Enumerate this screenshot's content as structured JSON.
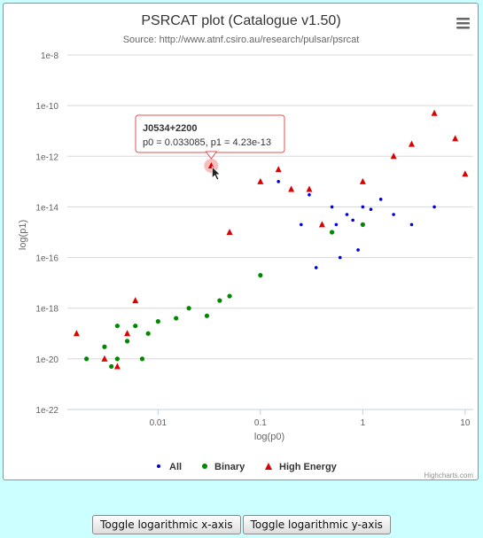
{
  "chart": {
    "title": "PSRCAT plot (Catalogue v1.50)",
    "subtitle": "Source: http://www.atnf.csiro.au/research/pulsar/psrcat",
    "credits": "Highcharts.com",
    "menu_icon": "hamburger-menu-icon"
  },
  "tooltip": {
    "name": "J0534+2200",
    "text": "p0 = 0.033085, p1 = 4.23e-13",
    "color": "#e05050"
  },
  "controls": {
    "toggle_x": "Toggle logarithmic x-axis",
    "toggle_y": "Toggle logarithmic y-axis"
  },
  "chart_data": {
    "type": "scatter",
    "title": "PSRCAT plot (Catalogue v1.50)",
    "subtitle": "Source: http://www.atnf.csiro.au/research/pulsar/psrcat",
    "xlabel": "log(p0)",
    "ylabel": "log(p1)",
    "x_scale": "log",
    "y_scale": "log",
    "xlim": [
      0.0013,
      12
    ],
    "ylim": [
      1e-22,
      1e-08
    ],
    "x_ticks": [
      "0.01",
      "0.1",
      "1",
      "10"
    ],
    "y_ticks": [
      "1e-22",
      "1e-20",
      "1e-18",
      "1e-16",
      "1e-14",
      "1e-12",
      "1e-10",
      "1e-8"
    ],
    "grid": "horizontal",
    "legend_position": "bottom-center",
    "series": [
      {
        "name": "All",
        "color": "#0000dd",
        "marker": "circle",
        "points": [
          [
            0.3,
            3e-14
          ],
          [
            0.5,
            1e-14
          ],
          [
            0.7,
            5e-15
          ],
          [
            1.0,
            1e-14
          ],
          [
            0.4,
            2e-15
          ],
          [
            0.6,
            1e-16
          ],
          [
            0.35,
            4e-17
          ],
          [
            0.2,
            5e-14
          ],
          [
            0.8,
            3e-15
          ],
          [
            1.5,
            2e-14
          ],
          [
            2.0,
            5e-15
          ],
          [
            0.9,
            2e-16
          ],
          [
            0.55,
            2e-15
          ],
          [
            1.2,
            8e-15
          ],
          [
            3.0,
            2e-15
          ],
          [
            5.0,
            1e-14
          ],
          [
            0.15,
            1e-13
          ],
          [
            0.25,
            2e-15
          ]
        ]
      },
      {
        "name": "Binary",
        "color": "#008800",
        "marker": "circle",
        "points": [
          [
            0.003,
            3e-20
          ],
          [
            0.004,
            1e-20
          ],
          [
            0.005,
            5e-20
          ],
          [
            0.006,
            2e-19
          ],
          [
            0.008,
            1e-19
          ],
          [
            0.01,
            3e-19
          ],
          [
            0.02,
            1e-18
          ],
          [
            0.03,
            5e-19
          ],
          [
            0.004,
            2e-19
          ],
          [
            0.002,
            1e-20
          ],
          [
            0.0035,
            5e-21
          ],
          [
            0.007,
            1e-20
          ],
          [
            0.05,
            3e-18
          ],
          [
            0.1,
            2e-17
          ],
          [
            0.5,
            1e-15
          ],
          [
            1.0,
            2e-15
          ],
          [
            0.04,
            2e-18
          ],
          [
            0.015,
            4e-19
          ]
        ]
      },
      {
        "name": "High Energy",
        "color": "#dd0000",
        "marker": "triangle",
        "points": [
          [
            0.033085,
            4.23e-13
          ],
          [
            0.0016,
            1e-19
          ],
          [
            0.003,
            1e-20
          ],
          [
            0.004,
            5e-21
          ],
          [
            0.005,
            1e-19
          ],
          [
            0.006,
            2e-18
          ],
          [
            0.1,
            1e-13
          ],
          [
            0.15,
            3e-13
          ],
          [
            0.2,
            5e-14
          ],
          [
            0.3,
            5e-14
          ],
          [
            1.0,
            1e-13
          ],
          [
            2.0,
            1e-12
          ],
          [
            3.0,
            3e-12
          ],
          [
            5.0,
            5e-11
          ],
          [
            8.0,
            5e-12
          ],
          [
            10.0,
            2e-13
          ],
          [
            0.05,
            1e-15
          ],
          [
            0.4,
            2e-15
          ]
        ]
      }
    ]
  }
}
